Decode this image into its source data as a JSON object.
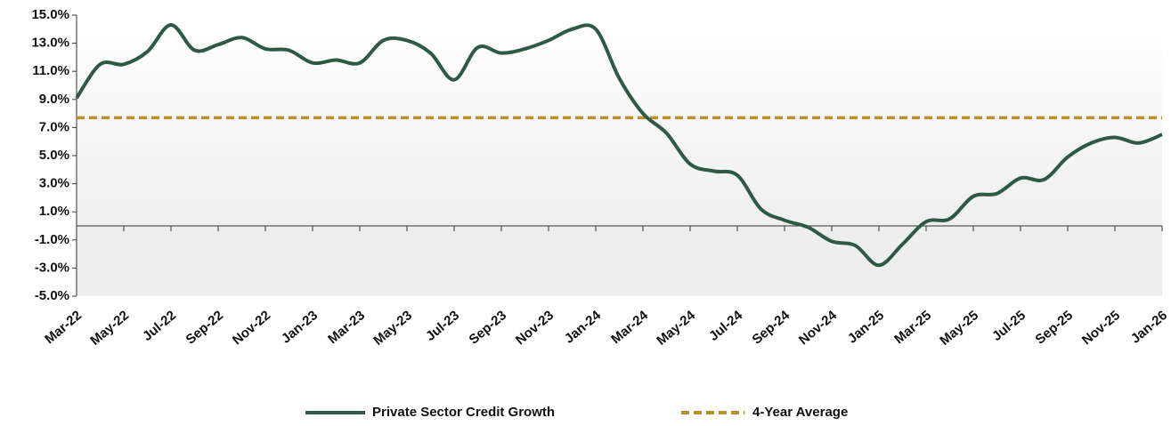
{
  "chart_data": {
    "type": "line",
    "categories": [
      "Mar-22",
      null,
      "May-22",
      null,
      "Jul-22",
      null,
      "Sep-22",
      null,
      "Nov-22",
      null,
      "Jan-23",
      null,
      "Mar-23",
      null,
      "May-23",
      null,
      "Jul-23",
      null,
      "Sep-23",
      null,
      "Nov-23",
      null,
      "Jan-24",
      null,
      "Mar-24",
      null,
      "May-24",
      null,
      "Jul-24",
      null,
      "Sep-24",
      null,
      "Nov-24",
      null,
      "Jan-25",
      null,
      "Mar-25",
      null,
      "May-25",
      null,
      "Jul-25",
      null,
      "Sep-25",
      null,
      "Nov-25",
      null,
      "Jan-26"
    ],
    "series": [
      {
        "name": "Private Sector Credit Growth",
        "color": "#2e5a45",
        "values": [
          9.1,
          11.5,
          11.5,
          12.4,
          14.3,
          12.5,
          12.9,
          13.4,
          12.6,
          12.5,
          11.6,
          11.8,
          11.6,
          13.2,
          13.2,
          12.3,
          10.4,
          12.7,
          12.3,
          12.6,
          13.2,
          14.0,
          14.0,
          10.5,
          8.0,
          6.6,
          4.4,
          3.9,
          3.6,
          1.2,
          0.4,
          -0.1,
          -1.1,
          -1.4,
          -2.8,
          -1.3,
          0.3,
          0.5,
          2.1,
          2.3,
          3.4,
          3.3,
          4.9,
          5.9,
          6.3,
          5.9,
          6.5
        ]
      }
    ],
    "reference_line": {
      "name": "4-Year Average",
      "value": 7.7,
      "color": "#b8912a",
      "dashed": true
    },
    "ylim": [
      -5,
      15
    ],
    "yticks": [
      {
        "value": 15,
        "label": "15.0%"
      },
      {
        "value": 13,
        "label": "13.0%"
      },
      {
        "value": 11,
        "label": "11.0%"
      },
      {
        "value": 9,
        "label": "9.0%"
      },
      {
        "value": 7,
        "label": "7.0%"
      },
      {
        "value": 5,
        "label": "5.0%"
      },
      {
        "value": 3,
        "label": "3.0%"
      },
      {
        "value": 1,
        "label": "1.0%"
      },
      {
        "value": -1,
        "label": "-1.0%"
      },
      {
        "value": -3,
        "label": "-3.0%"
      },
      {
        "value": -5,
        "label": "-5.0%"
      }
    ],
    "legend": "bottom"
  }
}
